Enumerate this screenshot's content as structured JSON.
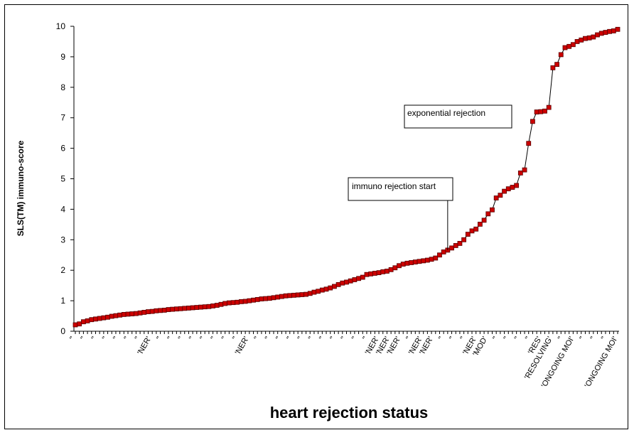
{
  "chart_data": {
    "type": "line",
    "title": "",
    "xlabel": "heart rejection status",
    "ylabel": "SLS(TM) immuno-score",
    "ylim": [
      0,
      10
    ],
    "yticks": [
      0,
      1,
      2,
      3,
      4,
      5,
      6,
      7,
      8,
      9,
      10
    ],
    "grid": false,
    "legend": "none",
    "series_color": "#cc0000",
    "line_color": "#000000",
    "annotations": [
      {
        "text": "immuno rejection start",
        "x_index": 92
      },
      {
        "text": "exponential rejection",
        "x_index": 111
      }
    ],
    "x_tick_labels": [
      "''",
      "''",
      "''",
      "''",
      "''",
      "''",
      "''",
      "'NER'",
      "''",
      "''",
      "''",
      "''",
      "''",
      "''",
      "''",
      "''",
      "'NER'",
      "''",
      "''",
      "''",
      "''",
      "''",
      "''",
      "''",
      "''",
      "''",
      "''",
      "''",
      "'NER'",
      "'NER'",
      "'NER'",
      "''",
      "'NER'",
      "'NER'",
      "''",
      "''",
      "''",
      "'NER'",
      "'MOD'",
      "''",
      "''",
      "''",
      "''",
      "'RES'",
      "'RESOLVING'",
      "''",
      "'ONGOING MOI'",
      "''",
      "''",
      "''",
      "'ONGOING MOI'"
    ],
    "values": [
      0.21,
      0.24,
      0.31,
      0.34,
      0.38,
      0.4,
      0.42,
      0.44,
      0.46,
      0.49,
      0.51,
      0.53,
      0.55,
      0.56,
      0.57,
      0.58,
      0.6,
      0.62,
      0.64,
      0.65,
      0.67,
      0.68,
      0.69,
      0.71,
      0.72,
      0.73,
      0.74,
      0.75,
      0.76,
      0.77,
      0.78,
      0.79,
      0.8,
      0.81,
      0.83,
      0.85,
      0.88,
      0.91,
      0.93,
      0.94,
      0.95,
      0.97,
      0.98,
      1.0,
      1.02,
      1.04,
      1.06,
      1.07,
      1.08,
      1.1,
      1.12,
      1.14,
      1.16,
      1.17,
      1.18,
      1.19,
      1.2,
      1.21,
      1.24,
      1.28,
      1.31,
      1.35,
      1.38,
      1.42,
      1.47,
      1.53,
      1.58,
      1.61,
      1.65,
      1.69,
      1.73,
      1.77,
      1.86,
      1.88,
      1.9,
      1.92,
      1.95,
      1.97,
      2.02,
      2.08,
      2.15,
      2.2,
      2.23,
      2.25,
      2.27,
      2.29,
      2.31,
      2.33,
      2.36,
      2.4,
      2.5,
      2.6,
      2.66,
      2.73,
      2.81,
      2.88,
      3.0,
      3.18,
      3.29,
      3.35,
      3.51,
      3.64,
      3.85,
      3.98,
      4.37,
      4.46,
      4.59,
      4.67,
      4.72,
      4.78,
      5.19,
      5.29,
      6.16,
      6.88,
      7.19,
      7.2,
      7.22,
      7.34,
      8.64,
      8.75,
      9.07,
      9.3,
      9.34,
      9.4,
      9.5,
      9.55,
      9.6,
      9.62,
      9.65,
      9.72,
      9.77,
      9.8,
      9.83,
      9.85,
      9.9
    ]
  }
}
